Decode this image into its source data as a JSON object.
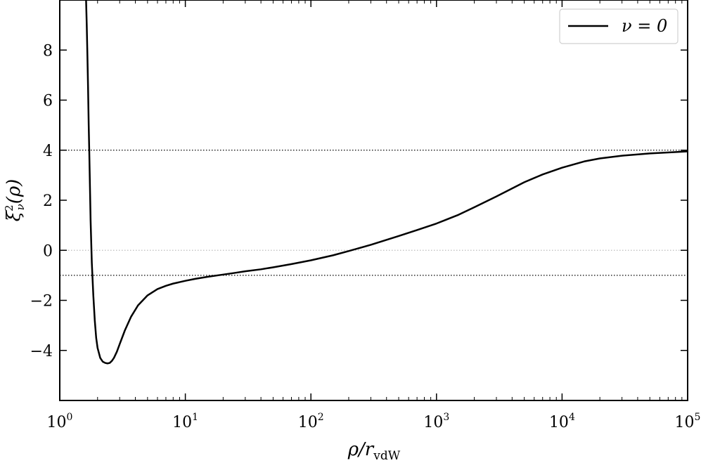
{
  "chart_data": {
    "type": "line",
    "xscale": "log",
    "xlim": [
      1,
      100000
    ],
    "ylim": [
      -6,
      10
    ],
    "xlabel_main": "ρ/r",
    "xlabel_sub": "vdW",
    "ylabel_main": "ξ",
    "ylabel_sup": "2",
    "ylabel_sub": "ν",
    "ylabel_arg": "(ρ)",
    "xticks": [
      {
        "value": 1,
        "base": "10",
        "exp": "0"
      },
      {
        "value": 10,
        "base": "10",
        "exp": "1"
      },
      {
        "value": 100,
        "base": "10",
        "exp": "2"
      },
      {
        "value": 1000,
        "base": "10",
        "exp": "3"
      },
      {
        "value": 10000,
        "base": "10",
        "exp": "4"
      },
      {
        "value": 100000,
        "base": "10",
        "exp": "5"
      }
    ],
    "yticks": [
      {
        "value": -4,
        "label": "−4"
      },
      {
        "value": -2,
        "label": "−2"
      },
      {
        "value": 0,
        "label": "0"
      },
      {
        "value": 2,
        "label": "2"
      },
      {
        "value": 4,
        "label": "4"
      },
      {
        "value": 6,
        "label": "6"
      },
      {
        "value": 8,
        "label": "8"
      }
    ],
    "reference_lines": [
      {
        "y": 4,
        "style": "dotted",
        "color": "#000000"
      },
      {
        "y": 0,
        "style": "dotted",
        "color": "#bbbbbb"
      },
      {
        "y": -1,
        "style": "dotted",
        "color": "#000000"
      }
    ],
    "legend": {
      "position": "top-right"
    },
    "series": [
      {
        "name": "ν = 0",
        "color": "#000000",
        "x": [
          1.62,
          1.64,
          1.66,
          1.68,
          1.7,
          1.72,
          1.74,
          1.76,
          1.8,
          1.85,
          1.9,
          1.95,
          2.0,
          2.1,
          2.2,
          2.3,
          2.4,
          2.5,
          2.6,
          2.7,
          2.85,
          3.0,
          3.3,
          3.7,
          4.2,
          5.0,
          6.0,
          7.0,
          8.0,
          10,
          12,
          15,
          20,
          25,
          30,
          40,
          50,
          70,
          100,
          150,
          200,
          300,
          500,
          700,
          1000,
          1500,
          2000,
          3000,
          5000,
          7000,
          10000,
          15000,
          20000,
          30000,
          50000,
          70000,
          100000
        ],
        "y": [
          10.0,
          9.0,
          7.8,
          6.5,
          5.0,
          3.8,
          2.5,
          1.2,
          -0.5,
          -1.8,
          -2.8,
          -3.5,
          -3.9,
          -4.3,
          -4.45,
          -4.5,
          -4.52,
          -4.5,
          -4.42,
          -4.3,
          -4.05,
          -3.75,
          -3.2,
          -2.65,
          -2.2,
          -1.8,
          -1.55,
          -1.42,
          -1.33,
          -1.22,
          -1.14,
          -1.06,
          -0.97,
          -0.9,
          -0.84,
          -0.76,
          -0.68,
          -0.55,
          -0.4,
          -0.2,
          -0.03,
          0.22,
          0.57,
          0.81,
          1.07,
          1.42,
          1.72,
          2.15,
          2.72,
          3.03,
          3.3,
          3.55,
          3.67,
          3.78,
          3.87,
          3.91,
          3.95
        ]
      }
    ]
  }
}
